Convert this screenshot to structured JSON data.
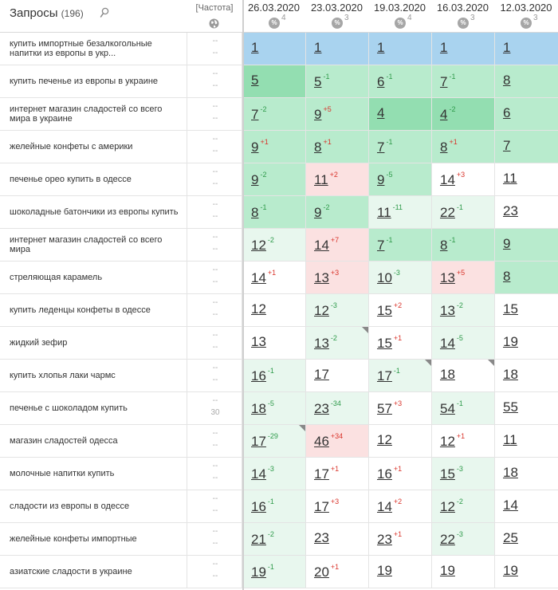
{
  "header": {
    "queries_label": "Запросы",
    "queries_count": "(196)",
    "frequency_label": "[Частота]",
    "dates": [
      {
        "label": "26.03.2020",
        "pct_sup": "4"
      },
      {
        "label": "23.03.2020",
        "pct_sup": "3"
      },
      {
        "label": "19.03.2020",
        "pct_sup": "4"
      },
      {
        "label": "16.03.2020",
        "pct_sup": "3"
      },
      {
        "label": "12.03.2020",
        "pct_sup": "3"
      }
    ],
    "pct_symbol": "%"
  },
  "colors": {
    "blue": "#a9d3ef",
    "green_strong": "#93deb1",
    "green_mid": "#b8ebcd",
    "green_light": "#e8f7ee",
    "red_light": "#fbe1e1",
    "white": "#ffffff"
  },
  "rows": [
    {
      "query": "купить импортные безалкогольные напитки из европы в укр...",
      "freq_a": "--",
      "freq_b": "--",
      "cells": [
        {
          "v": "1",
          "d": "",
          "bg": "blue"
        },
        {
          "v": "1",
          "d": "",
          "bg": "blue"
        },
        {
          "v": "1",
          "d": "",
          "bg": "blue"
        },
        {
          "v": "1",
          "d": "",
          "bg": "blue"
        },
        {
          "v": "1",
          "d": "",
          "bg": "blue"
        }
      ]
    },
    {
      "query": "купить печенье из европы в украине",
      "freq_a": "--",
      "freq_b": "--",
      "cells": [
        {
          "v": "5",
          "d": "",
          "bg": "green_strong"
        },
        {
          "v": "5",
          "d": "-1",
          "bg": "green_mid"
        },
        {
          "v": "6",
          "d": "-1",
          "bg": "green_mid"
        },
        {
          "v": "7",
          "d": "-1",
          "bg": "green_mid"
        },
        {
          "v": "8",
          "d": "",
          "bg": "green_mid"
        }
      ]
    },
    {
      "query": "интернет магазин сладостей со всего мира в украине",
      "freq_a": "--",
      "freq_b": "--",
      "cells": [
        {
          "v": "7",
          "d": "-2",
          "bg": "green_mid"
        },
        {
          "v": "9",
          "d": "+5",
          "bg": "green_mid"
        },
        {
          "v": "4",
          "d": "",
          "bg": "green_strong"
        },
        {
          "v": "4",
          "d": "-2",
          "bg": "green_strong"
        },
        {
          "v": "6",
          "d": "",
          "bg": "green_mid"
        }
      ]
    },
    {
      "query": "желейные конфеты с америки",
      "freq_a": "--",
      "freq_b": "--",
      "cells": [
        {
          "v": "9",
          "d": "+1",
          "bg": "green_mid"
        },
        {
          "v": "8",
          "d": "+1",
          "bg": "green_mid"
        },
        {
          "v": "7",
          "d": "-1",
          "bg": "green_mid"
        },
        {
          "v": "8",
          "d": "+1",
          "bg": "green_mid"
        },
        {
          "v": "7",
          "d": "",
          "bg": "green_mid"
        }
      ]
    },
    {
      "query": "печенье орео купить в одессе",
      "freq_a": "--",
      "freq_b": "--",
      "cells": [
        {
          "v": "9",
          "d": "-2",
          "bg": "green_mid"
        },
        {
          "v": "11",
          "d": "+2",
          "bg": "red_light"
        },
        {
          "v": "9",
          "d": "-5",
          "bg": "green_mid"
        },
        {
          "v": "14",
          "d": "+3",
          "bg": "white"
        },
        {
          "v": "11",
          "d": "",
          "bg": "white"
        }
      ]
    },
    {
      "query": "шоколадные батончики из европы купить",
      "freq_a": "--",
      "freq_b": "--",
      "cells": [
        {
          "v": "8",
          "d": "-1",
          "bg": "green_mid"
        },
        {
          "v": "9",
          "d": "-2",
          "bg": "green_mid"
        },
        {
          "v": "11",
          "d": "-11",
          "bg": "green_light"
        },
        {
          "v": "22",
          "d": "-1",
          "bg": "green_light"
        },
        {
          "v": "23",
          "d": "",
          "bg": "white"
        }
      ]
    },
    {
      "query": "интернет магазин сладостей со всего мира",
      "freq_a": "--",
      "freq_b": "--",
      "cells": [
        {
          "v": "12",
          "d": "-2",
          "bg": "green_light"
        },
        {
          "v": "14",
          "d": "+7",
          "bg": "red_light"
        },
        {
          "v": "7",
          "d": "-1",
          "bg": "green_mid"
        },
        {
          "v": "8",
          "d": "-1",
          "bg": "green_mid"
        },
        {
          "v": "9",
          "d": "",
          "bg": "green_mid"
        }
      ]
    },
    {
      "query": "стреляющая карамель",
      "freq_a": "--",
      "freq_b": "--",
      "cells": [
        {
          "v": "14",
          "d": "+1",
          "bg": "white"
        },
        {
          "v": "13",
          "d": "+3",
          "bg": "red_light"
        },
        {
          "v": "10",
          "d": "-3",
          "bg": "green_light"
        },
        {
          "v": "13",
          "d": "+5",
          "bg": "red_light"
        },
        {
          "v": "8",
          "d": "",
          "bg": "green_mid"
        }
      ]
    },
    {
      "query": "купить леденцы конфеты в одессе",
      "freq_a": "--",
      "freq_b": "--",
      "cells": [
        {
          "v": "12",
          "d": "",
          "bg": "white"
        },
        {
          "v": "12",
          "d": "-3",
          "bg": "green_light"
        },
        {
          "v": "15",
          "d": "+2",
          "bg": "white"
        },
        {
          "v": "13",
          "d": "-2",
          "bg": "green_light"
        },
        {
          "v": "15",
          "d": "",
          "bg": "white"
        }
      ]
    },
    {
      "query": "жидкий зефир",
      "freq_a": "--",
      "freq_b": "--",
      "cells": [
        {
          "v": "13",
          "d": "",
          "bg": "white"
        },
        {
          "v": "13",
          "d": "-2",
          "bg": "green_light",
          "corner": true
        },
        {
          "v": "15",
          "d": "+1",
          "bg": "white"
        },
        {
          "v": "14",
          "d": "-5",
          "bg": "green_light"
        },
        {
          "v": "19",
          "d": "",
          "bg": "white"
        }
      ]
    },
    {
      "query": "купить хлопья лаки чармс",
      "freq_a": "--",
      "freq_b": "--",
      "cells": [
        {
          "v": "16",
          "d": "-1",
          "bg": "green_light"
        },
        {
          "v": "17",
          "d": "",
          "bg": "white"
        },
        {
          "v": "17",
          "d": "-1",
          "bg": "green_light",
          "corner": true
        },
        {
          "v": "18",
          "d": "",
          "bg": "white",
          "corner": true
        },
        {
          "v": "18",
          "d": "",
          "bg": "white"
        }
      ]
    },
    {
      "query": "печенье с шоколадом купить",
      "freq_a": "--",
      "freq_b": "30",
      "cells": [
        {
          "v": "18",
          "d": "-5",
          "bg": "green_light"
        },
        {
          "v": "23",
          "d": "-34",
          "bg": "green_light"
        },
        {
          "v": "57",
          "d": "+3",
          "bg": "white"
        },
        {
          "v": "54",
          "d": "-1",
          "bg": "green_light"
        },
        {
          "v": "55",
          "d": "",
          "bg": "white"
        }
      ]
    },
    {
      "query": "магазин сладостей одесса",
      "freq_a": "--",
      "freq_b": "--",
      "cells": [
        {
          "v": "17",
          "d": "-29",
          "bg": "green_light",
          "corner": true
        },
        {
          "v": "46",
          "d": "+34",
          "bg": "red_light"
        },
        {
          "v": "12",
          "d": "",
          "bg": "white"
        },
        {
          "v": "12",
          "d": "+1",
          "bg": "white"
        },
        {
          "v": "11",
          "d": "",
          "bg": "white"
        }
      ]
    },
    {
      "query": "молочные напитки купить",
      "freq_a": "--",
      "freq_b": "--",
      "cells": [
        {
          "v": "14",
          "d": "-3",
          "bg": "green_light"
        },
        {
          "v": "17",
          "d": "+1",
          "bg": "white"
        },
        {
          "v": "16",
          "d": "+1",
          "bg": "white"
        },
        {
          "v": "15",
          "d": "-3",
          "bg": "green_light"
        },
        {
          "v": "18",
          "d": "",
          "bg": "white"
        }
      ]
    },
    {
      "query": "сладости из европы в одессе",
      "freq_a": "--",
      "freq_b": "--",
      "cells": [
        {
          "v": "16",
          "d": "-1",
          "bg": "green_light"
        },
        {
          "v": "17",
          "d": "+3",
          "bg": "white"
        },
        {
          "v": "14",
          "d": "+2",
          "bg": "white"
        },
        {
          "v": "12",
          "d": "-2",
          "bg": "green_light"
        },
        {
          "v": "14",
          "d": "",
          "bg": "white"
        }
      ]
    },
    {
      "query": "желейные конфеты импортные",
      "freq_a": "--",
      "freq_b": "--",
      "cells": [
        {
          "v": "21",
          "d": "-2",
          "bg": "green_light"
        },
        {
          "v": "23",
          "d": "",
          "bg": "white"
        },
        {
          "v": "23",
          "d": "+1",
          "bg": "white"
        },
        {
          "v": "22",
          "d": "-3",
          "bg": "green_light"
        },
        {
          "v": "25",
          "d": "",
          "bg": "white"
        }
      ]
    },
    {
      "query": "азиатские сладости в украине",
      "freq_a": "--",
      "freq_b": "--",
      "cells": [
        {
          "v": "19",
          "d": "-1",
          "bg": "green_light"
        },
        {
          "v": "20",
          "d": "+1",
          "bg": "white"
        },
        {
          "v": "19",
          "d": "",
          "bg": "white"
        },
        {
          "v": "19",
          "d": "",
          "bg": "white"
        },
        {
          "v": "19",
          "d": "",
          "bg": "white"
        }
      ]
    }
  ]
}
